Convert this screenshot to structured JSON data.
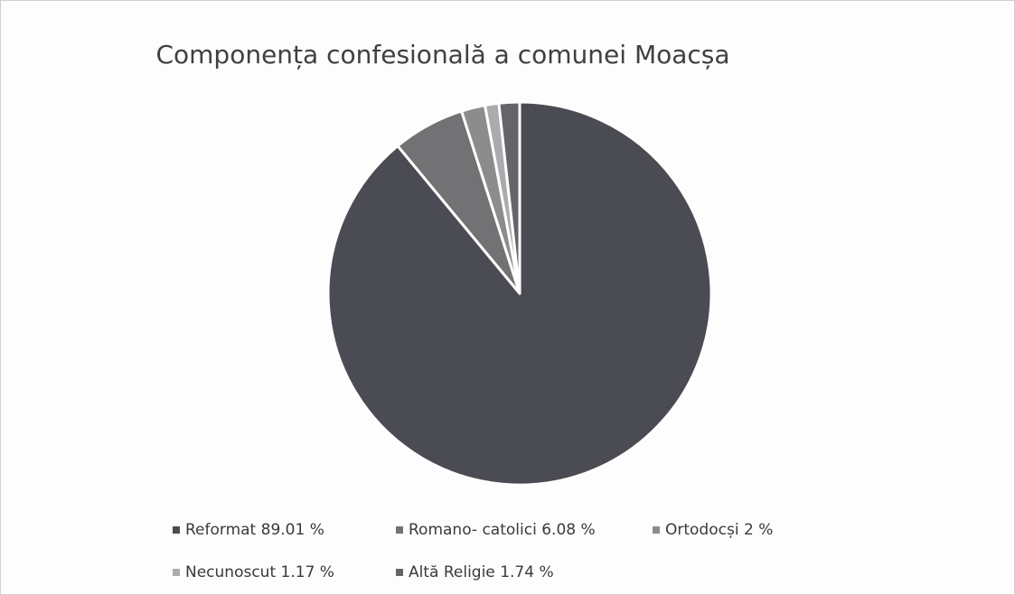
{
  "chart_data": {
    "type": "pie",
    "title": "Componența confesională a comunei Moacșa",
    "categories": [
      "Reformat",
      "Romano- catolici",
      "Ortodocși",
      "Necunoscut",
      "Altă Religie"
    ],
    "values": [
      89.01,
      6.08,
      2,
      1.17,
      1.74
    ],
    "value_labels": [
      "89.01 %",
      "6.08 %",
      "2 %",
      "1.17 %",
      "1.74 %"
    ],
    "colors": [
      "#4b4b54",
      "#727274",
      "#8c8c8e",
      "#ababad",
      "#64646a"
    ],
    "legend": "bottom"
  }
}
